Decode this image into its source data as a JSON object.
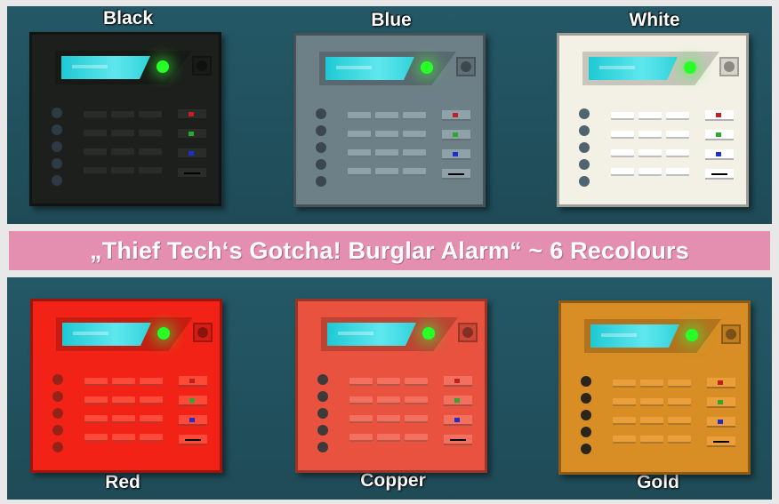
{
  "banner": {
    "title": "„Thief Tech‘s Gotcha! Burglar Alarm“ ~ 6 Recolours"
  },
  "recolours": [
    {
      "name": "Black",
      "body": "#1d1f1c",
      "key": "#2a2c29",
      "dot": "#2f3a44"
    },
    {
      "name": "Blue",
      "body": "#6d7f87",
      "key": "#8fa2aa",
      "dot": "#3b4750"
    },
    {
      "name": "White",
      "body": "#f3f1e6",
      "key": "#ffffff",
      "dot": "#4f6470"
    },
    {
      "name": "Red",
      "body": "#f22316",
      "key": "#ff4a3a",
      "dot": "#962218"
    },
    {
      "name": "Copper",
      "body": "#e8523f",
      "key": "#f3705e",
      "dot": "#3d3b3a"
    },
    {
      "name": "Gold",
      "body": "#d98d25",
      "key": "#ea9f3a",
      "dot": "#2b2419"
    }
  ],
  "indicator_colors": {
    "red": "#c41f1f",
    "green": "#2ca82c",
    "blue": "#1f2fcf"
  }
}
